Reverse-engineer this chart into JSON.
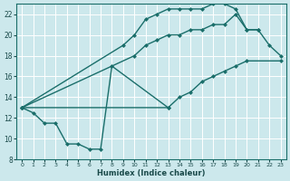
{
  "xlabel": "Humidex (Indice chaleur)",
  "bg_color": "#cce8ec",
  "grid_color": "#ffffff",
  "line_color": "#1a6e6a",
  "xlim": [
    -0.5,
    23.5
  ],
  "ylim": [
    8,
    23
  ],
  "xticks": [
    0,
    1,
    2,
    3,
    4,
    5,
    6,
    7,
    8,
    9,
    10,
    11,
    12,
    13,
    14,
    15,
    16,
    17,
    18,
    19,
    20,
    21,
    22,
    23
  ],
  "yticks": [
    8,
    10,
    12,
    14,
    16,
    18,
    20,
    22
  ],
  "curve_top_x": [
    0,
    9,
    10,
    11,
    12,
    13,
    14,
    15,
    16,
    17,
    18,
    19,
    20,
    21
  ],
  "curve_top_y": [
    13,
    19,
    20,
    21.5,
    22,
    22.5,
    22.5,
    22.5,
    22.5,
    23,
    23,
    22.5,
    20.5,
    20.5
  ],
  "curve_mid_x": [
    0,
    10,
    11,
    12,
    13,
    14,
    15,
    16,
    17,
    18,
    19,
    20,
    21,
    22,
    23
  ],
  "curve_mid_y": [
    13,
    18,
    19,
    19.5,
    20,
    20,
    20.5,
    20.5,
    21,
    21,
    22,
    20.5,
    20.5,
    19,
    18
  ],
  "curve_diag_x": [
    0,
    13,
    14,
    15,
    16,
    17,
    18,
    19,
    20,
    23
  ],
  "curve_diag_y": [
    13,
    13,
    14,
    14.5,
    15.5,
    16,
    16.5,
    17,
    17.5,
    17.5
  ],
  "curve_zigzag_x": [
    0,
    1,
    2,
    3,
    4,
    5,
    6,
    7,
    8,
    13
  ],
  "curve_zigzag_y": [
    13,
    12.5,
    11.5,
    11.5,
    9.5,
    9.5,
    9,
    9,
    17,
    13
  ]
}
